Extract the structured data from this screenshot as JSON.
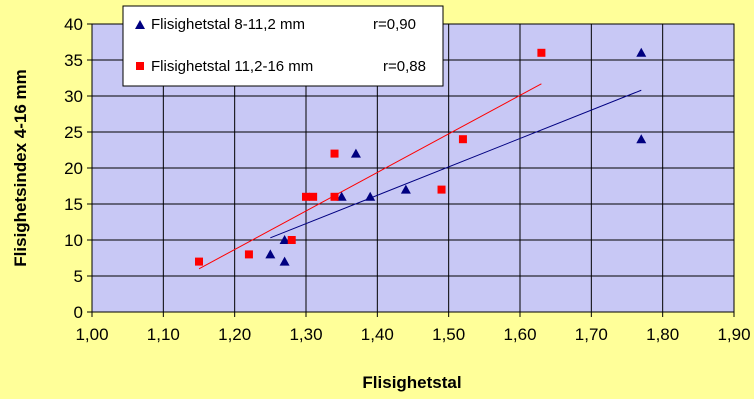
{
  "chart_data": {
    "type": "scatter",
    "xlabel": "Flisighetstal",
    "ylabel": "Flisighetsindex 4-16 mm",
    "xlim": [
      1.0,
      1.9
    ],
    "ylim": [
      0,
      40
    ],
    "xticks": [
      1.0,
      1.1,
      1.2,
      1.3,
      1.4,
      1.5,
      1.6,
      1.7,
      1.8,
      1.9
    ],
    "yticks": [
      0,
      5,
      10,
      15,
      20,
      25,
      30,
      35,
      40
    ],
    "xtick_labels": [
      "1,00",
      "1,10",
      "1,20",
      "1,30",
      "1,40",
      "1,50",
      "1,60",
      "1,70",
      "1,80",
      "1,90"
    ],
    "ytick_labels": [
      "0",
      "5",
      "10",
      "15",
      "20",
      "25",
      "30",
      "35",
      "40"
    ],
    "grid": true,
    "legend_position": "top-left",
    "series": [
      {
        "name": "Flisighetstal 8-11,2 mm",
        "r_label": "r=0,90",
        "marker": "triangle",
        "color": "#000080",
        "points": [
          {
            "x": 1.25,
            "y": 8
          },
          {
            "x": 1.27,
            "y": 7
          },
          {
            "x": 1.27,
            "y": 10
          },
          {
            "x": 1.35,
            "y": 16
          },
          {
            "x": 1.37,
            "y": 22
          },
          {
            "x": 1.39,
            "y": 16
          },
          {
            "x": 1.44,
            "y": 17
          },
          {
            "x": 1.77,
            "y": 24
          },
          {
            "x": 1.77,
            "y": 36
          }
        ],
        "trendline": {
          "x": [
            1.25,
            1.77
          ],
          "y": [
            10.3,
            30.8
          ]
        }
      },
      {
        "name": "Flisighetstal 11,2-16 mm",
        "r_label": "r=0,88",
        "marker": "square",
        "color": "#FF0000",
        "points": [
          {
            "x": 1.15,
            "y": 7
          },
          {
            "x": 1.22,
            "y": 8
          },
          {
            "x": 1.28,
            "y": 10
          },
          {
            "x": 1.3,
            "y": 16
          },
          {
            "x": 1.31,
            "y": 16
          },
          {
            "x": 1.34,
            "y": 16
          },
          {
            "x": 1.34,
            "y": 22
          },
          {
            "x": 1.49,
            "y": 17
          },
          {
            "x": 1.52,
            "y": 24
          },
          {
            "x": 1.63,
            "y": 36
          }
        ],
        "trendline": {
          "x": [
            1.15,
            1.63
          ],
          "y": [
            6.0,
            31.7
          ]
        }
      }
    ]
  },
  "colors": {
    "page_background": "#FFFF99",
    "plot_background": "#C8C8F5",
    "grid": "#000000"
  }
}
